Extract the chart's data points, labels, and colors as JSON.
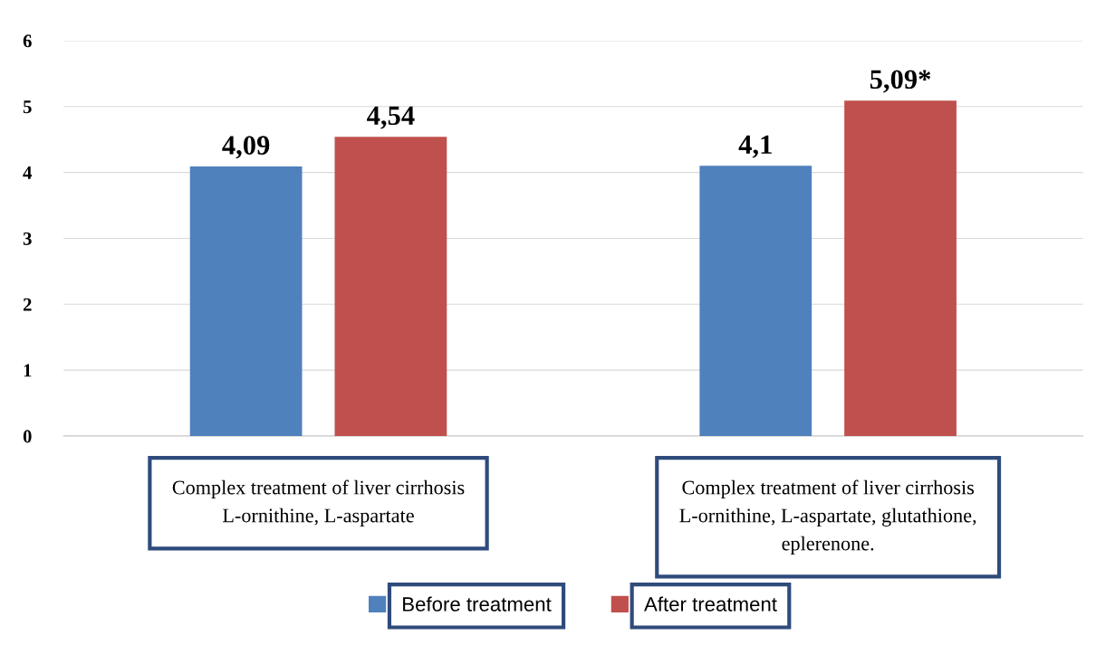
{
  "chart_data": {
    "type": "bar",
    "categories": [
      "Complex treatment of liver cirrhosis\nL-ornithine, L-aspartate",
      "Complex treatment of liver cirrhosis\nL-ornithine, L-aspartate, glutathione,\neplerenone."
    ],
    "series": [
      {
        "name": "Before treatment",
        "color": "#4f81bd",
        "values": [
          4.09,
          4.1
        ],
        "value_labels": [
          "4,09",
          "4,1"
        ]
      },
      {
        "name": "After treatment",
        "color": "#c0504d",
        "values": [
          4.54,
          5.09
        ],
        "value_labels": [
          "4,54",
          "5,09*"
        ]
      }
    ],
    "ylim": [
      0,
      6
    ],
    "yticks": [
      0,
      1,
      2,
      3,
      4,
      5,
      6
    ],
    "grid": "y",
    "legend": "bottom"
  }
}
